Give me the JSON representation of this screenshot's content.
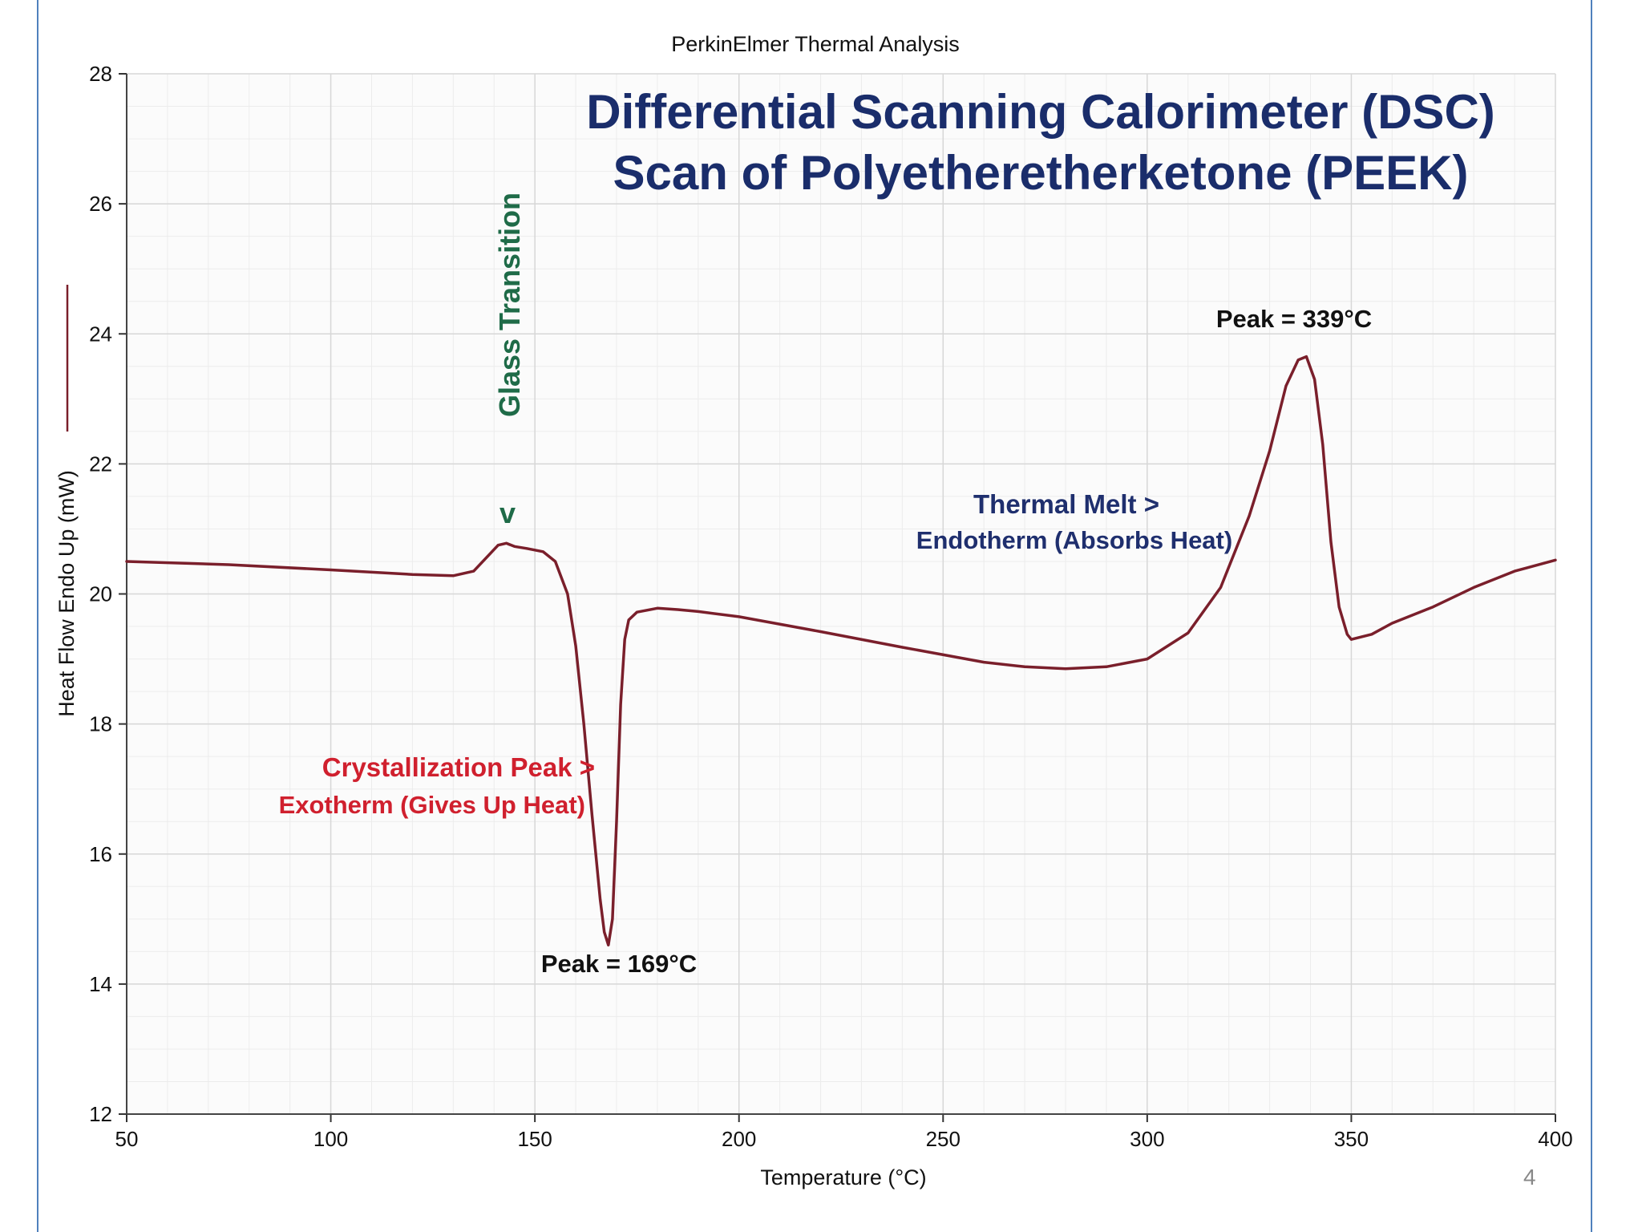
{
  "slide": {
    "page_number": "4"
  },
  "chart_data": {
    "type": "line",
    "instrument_title": "PerkinElmer Thermal Analysis",
    "title": "Differential Scanning Calorimeter (DSC)",
    "subtitle": "Scan of Polyetheretherketone (PEEK)",
    "xlabel": "Temperature (°C)",
    "ylabel": "Heat Flow Endo Up (mW)",
    "xlim": [
      50,
      400
    ],
    "ylim": [
      12,
      28
    ],
    "xticks": [
      50,
      100,
      150,
      200,
      250,
      300,
      350,
      400
    ],
    "xtick_labels": [
      "50",
      "100",
      "150",
      "200",
      "250",
      "300",
      "350",
      "400"
    ],
    "yticks": [
      12,
      14,
      16,
      18,
      20,
      22,
      24,
      26,
      28
    ],
    "ytick_labels": [
      "12",
      "14",
      "16",
      "18",
      "20",
      "22",
      "24",
      "26",
      "28"
    ],
    "grid": true,
    "line_color": "#7a1f2b",
    "series": [
      {
        "x": [
          50,
          75,
          100,
          120,
          130,
          135,
          138,
          141,
          143,
          145,
          148,
          152,
          155,
          158,
          160,
          162,
          164,
          166,
          167,
          168,
          169,
          170,
          171,
          172,
          173,
          175,
          180,
          185,
          190,
          200,
          220,
          240,
          260,
          270,
          280,
          290,
          300,
          310,
          318,
          325,
          330,
          334,
          337,
          339,
          341,
          343,
          345,
          347,
          349,
          350,
          355,
          360,
          370,
          380,
          390,
          400
        ],
        "y": [
          20.5,
          20.45,
          20.37,
          20.3,
          20.28,
          20.35,
          20.55,
          20.75,
          20.78,
          20.73,
          20.7,
          20.65,
          20.5,
          20.0,
          19.2,
          18.0,
          16.6,
          15.3,
          14.8,
          14.6,
          15.0,
          16.5,
          18.3,
          19.3,
          19.6,
          19.72,
          19.78,
          19.76,
          19.73,
          19.65,
          19.42,
          19.18,
          18.95,
          18.88,
          18.85,
          18.88,
          19.0,
          19.4,
          20.1,
          21.2,
          22.2,
          23.2,
          23.6,
          23.65,
          23.3,
          22.3,
          20.8,
          19.8,
          19.38,
          19.3,
          19.38,
          19.55,
          19.8,
          20.1,
          20.35,
          20.52
        ]
      }
    ],
    "annotations": {
      "glass_transition": "Glass Transition",
      "glass_marker": "v",
      "thermal_melt": "Thermal Melt  >",
      "endotherm": "Endotherm (Absorbs Heat)",
      "peak_melt": "Peak = 339°C",
      "crystallization": "Crystallization Peak >",
      "exotherm": "Exotherm (Gives Up Heat)",
      "peak_cryst": "Peak = 169°C"
    }
  }
}
